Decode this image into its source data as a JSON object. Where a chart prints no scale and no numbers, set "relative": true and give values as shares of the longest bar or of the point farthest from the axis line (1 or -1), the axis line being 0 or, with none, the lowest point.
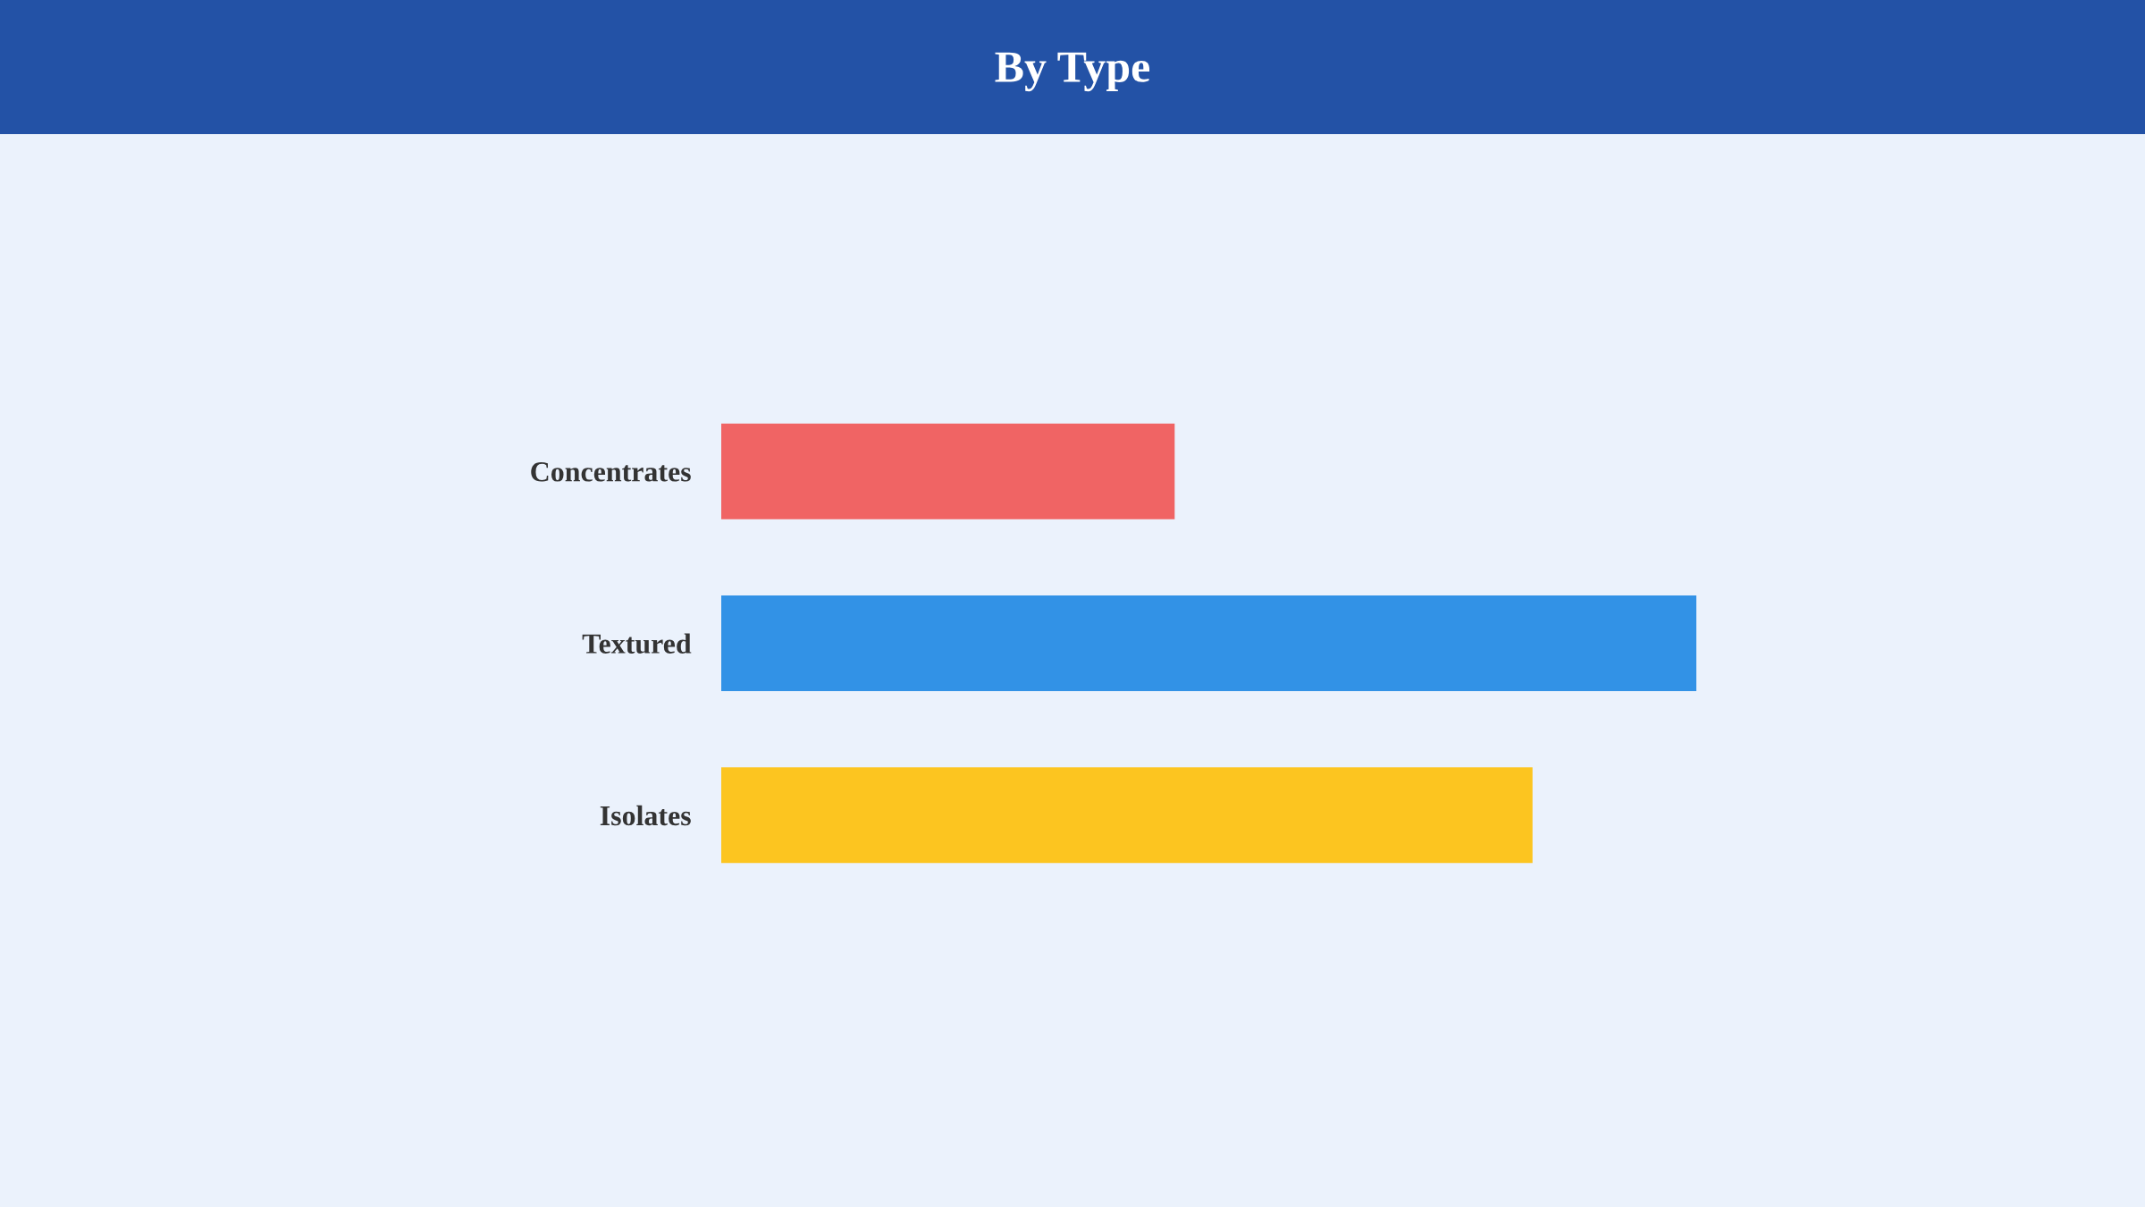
{
  "chart_data": {
    "type": "bar",
    "title": "By Type",
    "orientation": "horizontal",
    "relative": true,
    "categories": [
      "Concentrates",
      "Textured",
      "Isolates"
    ],
    "values": [
      0.465,
      1,
      0.832
    ],
    "colors": [
      "#f06464",
      "#3292e6",
      "#fcc520"
    ]
  }
}
